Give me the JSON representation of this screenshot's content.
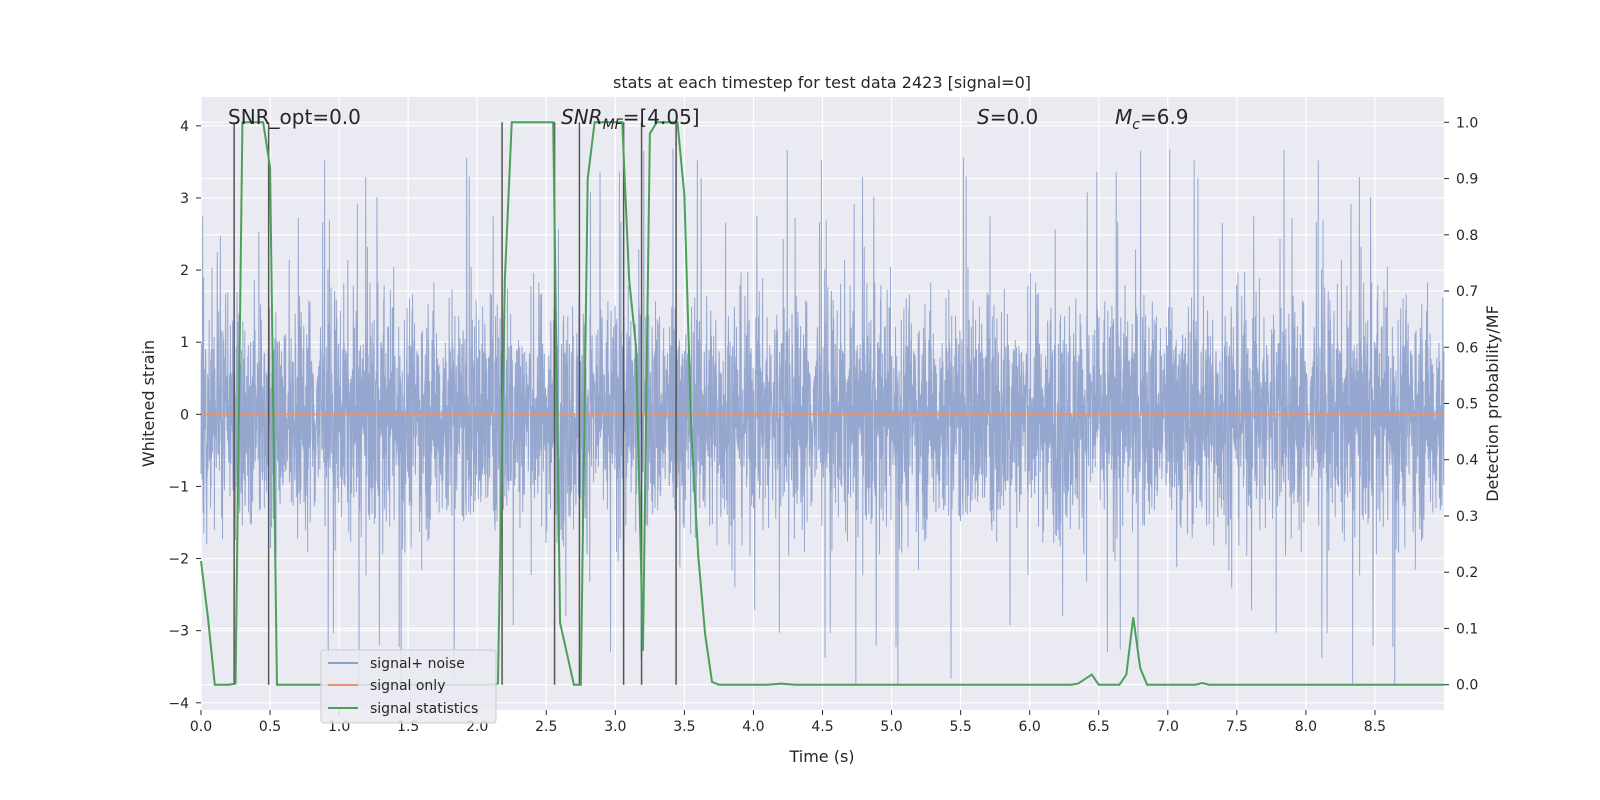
{
  "chart_data": {
    "type": "line",
    "title": "stats at each timestep for test data 2423 [signal=0]",
    "xlabel": "Time (s)",
    "ylabel": "Whitened strain",
    "y2label": "Detection probability/MF",
    "xlim": [
      0,
      9
    ],
    "ylim": [
      -4.1,
      4.4
    ],
    "y2lim": [
      -0.045,
      1.045
    ],
    "x_ticks": [
      0.0,
      0.5,
      1.0,
      1.5,
      2.0,
      2.5,
      3.0,
      3.5,
      4.0,
      4.5,
      5.0,
      5.5,
      6.0,
      6.5,
      7.0,
      7.5,
      8.0,
      8.5
    ],
    "x_tick_labels": [
      "0.0",
      "0.5",
      "1.0",
      "1.5",
      "2.0",
      "2.5",
      "3.0",
      "3.5",
      "4.0",
      "4.5",
      "5.0",
      "5.5",
      "6.0",
      "6.5",
      "7.0",
      "7.5",
      "8.0",
      "8.5"
    ],
    "y_ticks": [
      4,
      3,
      2,
      1,
      0,
      -1,
      -2,
      -3,
      -4
    ],
    "y_tick_labels": [
      "4",
      "3",
      "2",
      "1",
      "0",
      "−1",
      "−2",
      "−3",
      "−4"
    ],
    "y2_ticks": [
      1.0,
      0.9,
      0.8,
      0.7,
      0.6,
      0.5,
      0.4,
      0.3,
      0.2,
      0.1,
      0.0
    ],
    "y2_tick_labels": [
      "1.0",
      "0.9",
      "0.8",
      "0.7",
      "0.6",
      "0.5",
      "0.4",
      "0.3",
      "0.2",
      "0.1",
      "0.0"
    ],
    "grid": true,
    "legend": {
      "placement": "lower-left",
      "entries": [
        {
          "name": "signal+ noise",
          "color": "#8da0cb"
        },
        {
          "name": "signal only",
          "color": "#e5956f"
        },
        {
          "name": "signal statistics",
          "color": "#4aa05a"
        }
      ]
    },
    "annotations": {
      "snr_opt": "SNR_opt=0.0",
      "snr_mf": "SNR",
      "snr_mf_sub": "MF",
      "snr_mf_val": "=[4.05]",
      "s_sym": "S",
      "s_val": "=0.0",
      "mc_sym": "M",
      "mc_sub": "c",
      "mc_val": "=6.9"
    },
    "noise": {
      "description_free": true,
      "amplitude_typical": 1.6,
      "amplitude_max": 3.75,
      "color": "#8da0cb"
    },
    "signal_only": {
      "y": 0,
      "color": "#e5956f"
    },
    "vertical_markers_x": [
      0.24,
      0.49,
      2.18,
      2.56,
      2.74,
      3.06,
      3.19,
      3.44
    ],
    "detection_probability": {
      "color": "#4aa05a",
      "x": [
        0.0,
        0.05,
        0.1,
        0.15,
        0.2,
        0.25,
        0.3,
        0.35,
        0.4,
        0.45,
        0.5,
        0.55,
        0.6,
        0.7,
        0.8,
        1.0,
        1.5,
        2.0,
        2.1,
        2.15,
        2.2,
        2.25,
        2.3,
        2.4,
        2.5,
        2.55,
        2.6,
        2.7,
        2.75,
        2.8,
        2.85,
        2.9,
        3.0,
        3.05,
        3.1,
        3.15,
        3.2,
        3.25,
        3.3,
        3.4,
        3.45,
        3.5,
        3.55,
        3.6,
        3.65,
        3.7,
        3.75,
        3.8,
        4.0,
        4.1,
        4.2,
        4.3,
        5.0,
        6.0,
        6.3,
        6.35,
        6.45,
        6.5,
        6.6,
        6.65,
        6.7,
        6.75,
        6.8,
        6.85,
        7.0,
        7.2,
        7.25,
        7.3,
        8.0,
        9.0
      ],
      "y": [
        0.22,
        0.12,
        0.0,
        0.0,
        0.0,
        0.002,
        1.0,
        1.0,
        1.0,
        1.0,
        0.92,
        0.0,
        0.0,
        0.0,
        0.0,
        0.0,
        0.0,
        0.0,
        0.0,
        0.002,
        0.72,
        1.0,
        1.0,
        1.0,
        1.0,
        1.0,
        0.11,
        0.0,
        0.0,
        0.9,
        1.0,
        1.0,
        1.0,
        1.0,
        0.72,
        0.6,
        0.06,
        0.98,
        1.0,
        1.0,
        1.0,
        0.87,
        0.45,
        0.23,
        0.09,
        0.005,
        0.0,
        0.0,
        0.0,
        0.0,
        0.002,
        0.0,
        0.0,
        0.0,
        0.0,
        0.002,
        0.018,
        0.0,
        0.0,
        0.0,
        0.018,
        0.12,
        0.03,
        0.0,
        0.0,
        0.0,
        0.003,
        0.0,
        0.0,
        0.0
      ]
    }
  }
}
